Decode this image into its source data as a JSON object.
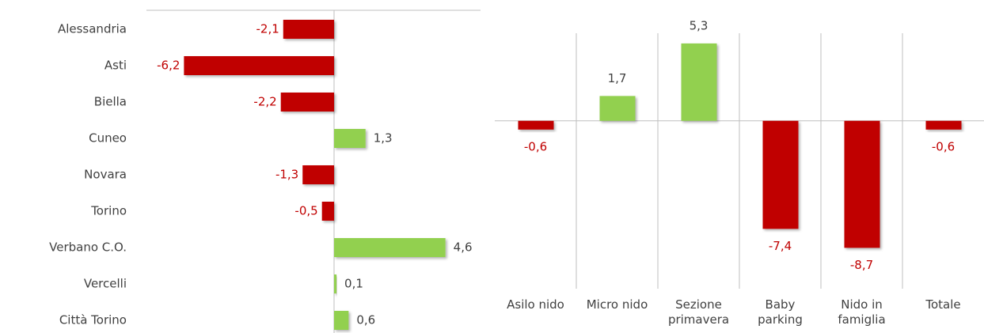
{
  "chart_data": [
    {
      "type": "hbar",
      "categories": [
        "Alessandria",
        "Asti",
        "Biella",
        "Cuneo",
        "Novara",
        "Torino",
        "Verbano C.O.",
        "Vercelli",
        "Città Torino"
      ],
      "values": [
        -2.1,
        -6.2,
        -2.2,
        1.3,
        -1.3,
        -0.5,
        4.6,
        0.1,
        0.6
      ],
      "value_labels": [
        "-2,1",
        "-6,2",
        "-2,2",
        "1,3",
        "-1,3",
        "-0,5",
        "4,6",
        "0,1",
        "0,6"
      ],
      "xlim": [
        -7.75,
        6.05
      ],
      "positive_color": "#92d050",
      "negative_color": "#c00000"
    },
    {
      "type": "bar",
      "categories": [
        "Asilo nido",
        "Micro nido",
        "Sezione primavera",
        "Baby parking",
        "Nido in famiglia",
        "Totale"
      ],
      "values": [
        -0.6,
        1.7,
        5.3,
        -7.4,
        -8.7,
        -0.6
      ],
      "value_labels": [
        "-0,6",
        "1,7",
        "5,3",
        "-7,4",
        "-8,7",
        "-0,6"
      ],
      "ylim": [
        -11.5,
        6
      ],
      "positive_color": "#92d050",
      "negative_color": "#c00000"
    }
  ]
}
